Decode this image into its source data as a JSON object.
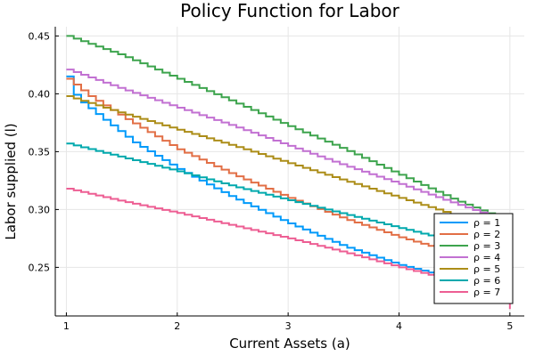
{
  "chart_data": {
    "type": "line",
    "title": "Policy Function for Labor",
    "xlabel": "Current Assets (a)",
    "ylabel": "Labor supplied (l)",
    "xlim": [
      0.9,
      5.13
    ],
    "ylim": [
      0.208,
      0.458
    ],
    "xticks": [
      1,
      2,
      3,
      4,
      5
    ],
    "yticks": [
      0.25,
      0.3,
      0.35,
      0.4,
      0.45
    ],
    "xtick_labels": [
      "1",
      "2",
      "3",
      "4",
      "5"
    ],
    "ytick_labels": [
      "0.25",
      "0.30",
      "0.35",
      "0.40",
      "0.45"
    ],
    "grid": true,
    "legend_position": "bottom-right",
    "series": [
      {
        "name": "ρ = 1",
        "color": "#009AFA",
        "x": [
          1.0,
          1.02,
          1.1,
          1.3,
          1.6,
          2.0,
          2.5,
          3.0,
          3.5,
          4.0,
          4.5,
          4.8,
          4.9,
          4.95,
          5.0
        ],
        "y": [
          0.415,
          0.405,
          0.395,
          0.38,
          0.358,
          0.335,
          0.31,
          0.288,
          0.268,
          0.252,
          0.24,
          0.233,
          0.23,
          0.222,
          0.22
        ]
      },
      {
        "name": "ρ = 2",
        "color": "#E26F46",
        "x": [
          1.0,
          1.2,
          1.5,
          2.0,
          2.5,
          3.0,
          3.5,
          4.0,
          4.5,
          4.9,
          5.0
        ],
        "y": [
          0.413,
          0.398,
          0.38,
          0.352,
          0.33,
          0.31,
          0.292,
          0.276,
          0.262,
          0.252,
          0.248
        ]
      },
      {
        "name": "ρ = 3",
        "color": "#3DA44D",
        "x": [
          1.0,
          1.5,
          2.0,
          2.5,
          3.0,
          3.5,
          4.0,
          4.5,
          4.9,
          5.0
        ],
        "y": [
          0.45,
          0.433,
          0.413,
          0.393,
          0.372,
          0.352,
          0.33,
          0.308,
          0.293,
          0.275
        ]
      },
      {
        "name": "ρ = 4",
        "color": "#C271D2",
        "x": [
          1.0,
          1.5,
          2.0,
          2.5,
          3.0,
          3.5,
          4.0,
          4.5,
          4.9,
          5.0
        ],
        "y": [
          0.421,
          0.404,
          0.388,
          0.372,
          0.355,
          0.338,
          0.322,
          0.305,
          0.292,
          0.29
        ]
      },
      {
        "name": "ρ = 5",
        "color": "#AC8D18",
        "x": [
          1.0,
          1.5,
          2.0,
          2.5,
          3.0,
          3.5,
          4.0,
          4.5,
          4.9,
          5.0
        ],
        "y": [
          0.398,
          0.383,
          0.369,
          0.355,
          0.34,
          0.325,
          0.31,
          0.295,
          0.284,
          0.281
        ]
      },
      {
        "name": "ρ = 6",
        "color": "#00A9AD",
        "x": [
          1.0,
          1.5,
          2.0,
          2.5,
          3.0,
          3.5,
          4.0,
          4.5,
          4.9,
          5.0
        ],
        "y": [
          0.357,
          0.345,
          0.333,
          0.32,
          0.308,
          0.296,
          0.284,
          0.272,
          0.263,
          0.26
        ]
      },
      {
        "name": "ρ = 7",
        "color": "#ED5E93",
        "x": [
          1.0,
          1.5,
          2.0,
          2.5,
          3.0,
          3.5,
          4.0,
          4.5,
          4.9,
          5.0
        ],
        "y": [
          0.318,
          0.307,
          0.297,
          0.286,
          0.275,
          0.263,
          0.25,
          0.238,
          0.228,
          0.214
        ]
      }
    ]
  }
}
